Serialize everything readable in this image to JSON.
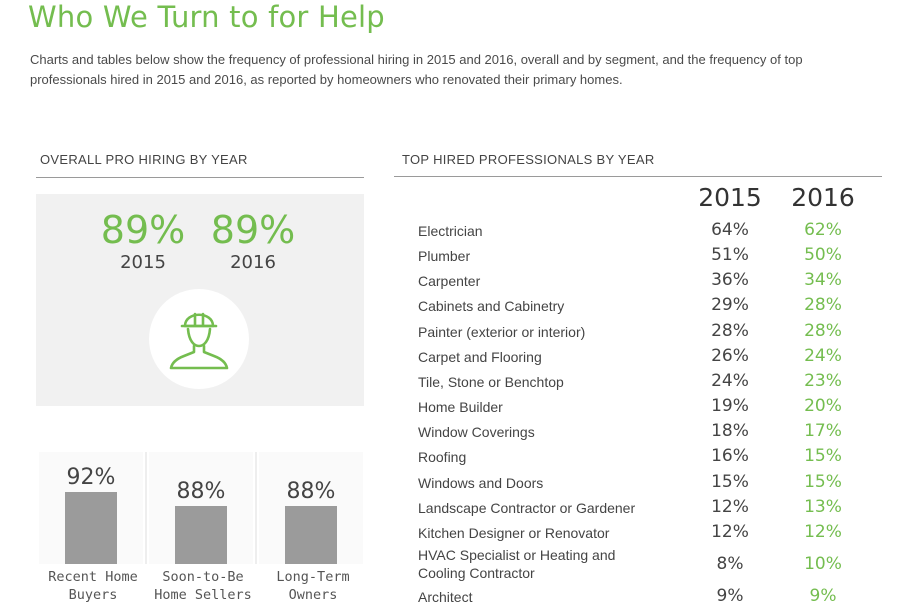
{
  "page": {
    "title": "Who We Turn to for Help",
    "intro": "Charts and tables below show the frequency of professional hiring in 2015 and 2016, overall and by segment, and the frequency of top professionals hired in 2015 and 2016, as reported by homeowners who renovated their primary homes."
  },
  "overall": {
    "heading": "OVERALL PRO HIRING BY YEAR",
    "years": [
      {
        "pct": "89%",
        "year": "2015"
      },
      {
        "pct": "89%",
        "year": "2016"
      }
    ],
    "icon": "worker-hardhat-icon"
  },
  "colors": {
    "accent": "#74bd4f",
    "bar": "#9b9b9b",
    "panel": "#f1f1f1"
  },
  "chart_data": [
    {
      "type": "bar",
      "categories": [
        "Recent Home Buyers",
        "Soon-to-Be Home Sellers",
        "Long-Term Owners"
      ],
      "category_lines": [
        [
          "Recent Home",
          "Buyers"
        ],
        [
          "Soon-to-Be",
          "Home Sellers"
        ],
        [
          "Long-Term",
          "Owners"
        ]
      ],
      "values": [
        92,
        88,
        88
      ],
      "value_labels": [
        "92%",
        "88%",
        "88%"
      ],
      "ylim": [
        0,
        100
      ],
      "grid": false
    },
    {
      "type": "table",
      "title": "TOP HIRED PROFESSIONALS BY YEAR",
      "columns": [
        "2015",
        "2016"
      ],
      "rows": [
        {
          "name": "Electrician",
          "v2015": "64%",
          "v2016": "62%"
        },
        {
          "name": "Plumber",
          "v2015": "51%",
          "v2016": "50%"
        },
        {
          "name": "Carpenter",
          "v2015": "36%",
          "v2016": "34%"
        },
        {
          "name": "Cabinets and Cabinetry",
          "v2015": "29%",
          "v2016": "28%"
        },
        {
          "name": "Painter (exterior or interior)",
          "v2015": "28%",
          "v2016": "28%"
        },
        {
          "name": "Carpet and Flooring",
          "v2015": "26%",
          "v2016": "24%"
        },
        {
          "name": "Tile, Stone or Benchtop",
          "v2015": "24%",
          "v2016": "23%"
        },
        {
          "name": "Home Builder",
          "v2015": "19%",
          "v2016": "20%"
        },
        {
          "name": "Window Coverings",
          "v2015": "18%",
          "v2016": "17%"
        },
        {
          "name": "Roofing",
          "v2015": "16%",
          "v2016": "15%"
        },
        {
          "name": "Windows and Doors",
          "v2015": "15%",
          "v2016": "15%"
        },
        {
          "name": "Landscape Contractor or Gardener",
          "v2015": "12%",
          "v2016": "13%"
        },
        {
          "name": "Kitchen Designer or Renovator",
          "v2015": "12%",
          "v2016": "12%"
        },
        {
          "name": "HVAC Specialist or Heating and Cooling Contractor",
          "v2015": "8%",
          "v2016": "10%"
        },
        {
          "name": "Architect",
          "v2015": "9%",
          "v2016": "9%"
        }
      ]
    }
  ]
}
